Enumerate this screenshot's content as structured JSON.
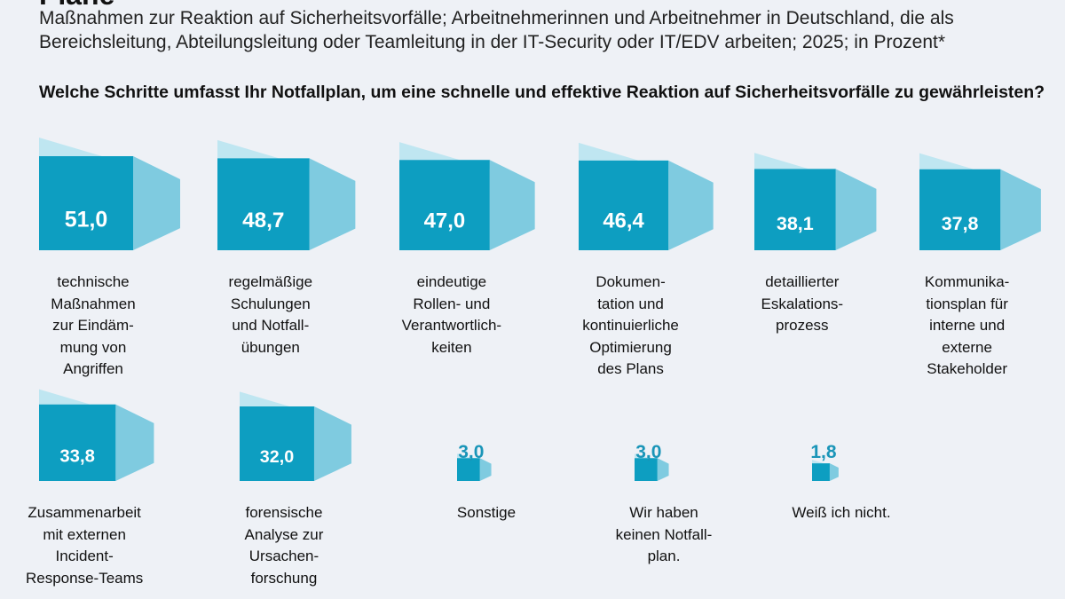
{
  "header": {
    "title_fragment": "Pläne",
    "subtitle": "Maßnahmen zur Reaktion auf Sicherheitsvorfälle; Arbeitnehmerinnen und Arbeitnehmer in Deutschland, die als Bereichsleitung, Abteilungsleitung oder Teamleitung in der IT-Security oder IT/EDV arbeiten; 2025; in Prozent*",
    "question": "Welche Schritte umfasst Ihr Notfallplan, um eine schnelle und effektive Reaktion auf Sicherheitsvorfälle zu gewährleisten?"
  },
  "colors": {
    "background": "#eef1f6",
    "front": "#0d9ec1",
    "top": "#bfe6f1",
    "side": "#7fcbe0",
    "value_small": "#1a95b8"
  },
  "chart_data": {
    "type": "bar",
    "style": "3d-blocks",
    "unit": "Prozent",
    "categories": [
      "technische\nMaßnahmen\nzur Eindäm-\nmung von\nAngriffen",
      "regelmäßige\nSchulungen\nund Notfall-\nübungen",
      "eindeutige\nRollen- und\nVerantwortlich-\nkeiten",
      "Dokumen-\ntation und\nkontinuierliche\nOptimierung\ndes Plans",
      "detaillierter\nEskalations-\nprozess",
      "Kommunika-\ntionsplan für\ninterne und\nexterne\nStakeholder",
      "Zusammenarbeit\nmit externen\nIncident-\nResponse-Teams",
      "forensische\nAnalyse zur\nUrsachen-\nforschung",
      "Sonstige",
      "Wir haben\nkeinen Notfall-\nplan.",
      "Weiß ich nicht."
    ],
    "values": [
      51.0,
      48.7,
      47.0,
      46.4,
      38.1,
      37.8,
      33.8,
      32.0,
      3.0,
      3.0,
      1.8
    ],
    "value_labels": [
      "51,0",
      "48,7",
      "47,0",
      "46,4",
      "38,1",
      "37,8",
      "33,8",
      "32,0",
      "3,0",
      "3,0",
      "1,8"
    ]
  }
}
